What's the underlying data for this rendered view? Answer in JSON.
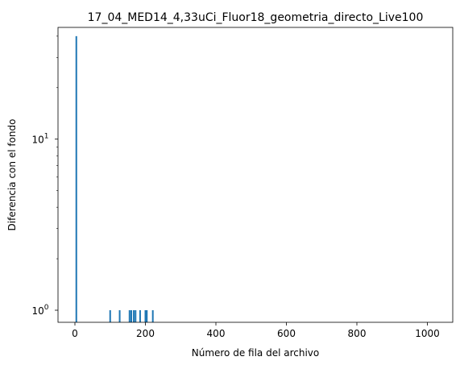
{
  "chart_data": {
    "type": "bar",
    "title": "17_04_MED14_4,33uCi_Fluor18_geometria_directo_Live100",
    "xlabel": "Número de fila del archivo",
    "ylabel": "Diferencia con el fondo",
    "y_scale": "log",
    "xlim": [
      -48,
      1072
    ],
    "ylim": [
      0.85,
      45
    ],
    "x_ticks": [
      0,
      200,
      400,
      600,
      800,
      1000
    ],
    "x_tick_labels": [
      "0",
      "200",
      "400",
      "600",
      "800",
      "1000"
    ],
    "y_major_ticks": [
      1,
      10
    ],
    "y_minor_ticks": [
      2,
      3,
      4,
      5,
      6,
      7,
      8,
      9,
      20,
      30,
      40
    ],
    "bar_color": "#1f77b4",
    "series": [
      {
        "x": [
          4,
          100,
          127,
          155,
          160,
          167,
          172,
          185,
          200,
          204,
          221
        ],
        "values": [
          40,
          1,
          1,
          1,
          1,
          1,
          1,
          1,
          1,
          1,
          1
        ]
      }
    ],
    "grid": false
  }
}
